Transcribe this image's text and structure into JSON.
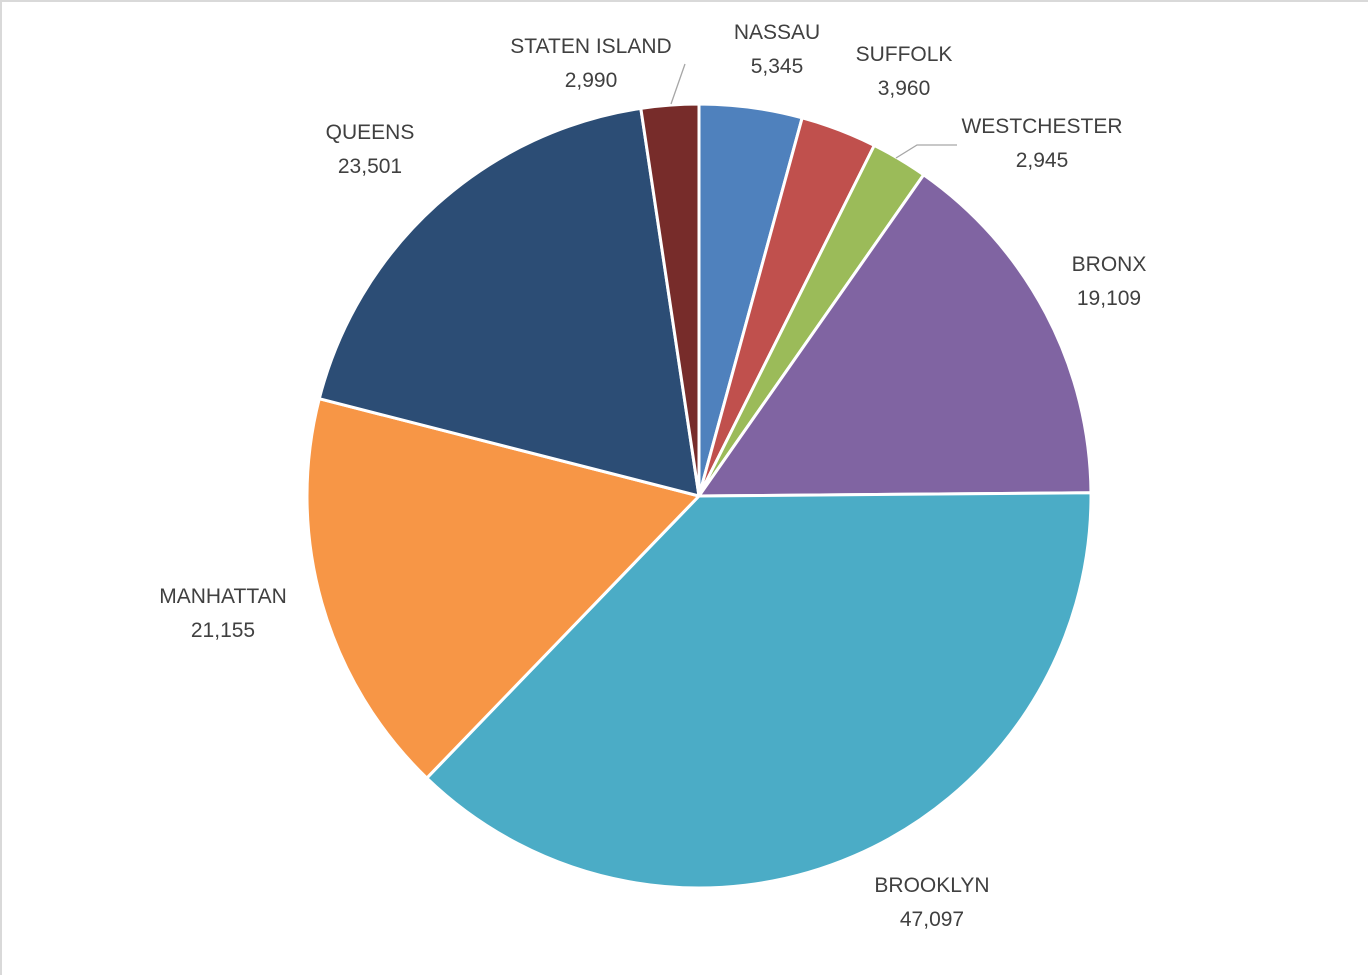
{
  "chart_data": {
    "type": "pie",
    "title": "",
    "start_angle_deg": 0,
    "direction": "clockwise",
    "slices": [
      {
        "label": "NASSAU",
        "value": 5345,
        "value_label": "5,345",
        "color": "#4F81BD"
      },
      {
        "label": "SUFFOLK",
        "value": 3960,
        "value_label": "3,960",
        "color": "#C0504D"
      },
      {
        "label": "WESTCHESTER",
        "value": 2945,
        "value_label": "2,945",
        "color": "#9BBB59"
      },
      {
        "label": "BRONX",
        "value": 19109,
        "value_label": "19,109",
        "color": "#8064A2"
      },
      {
        "label": "BROOKLYN",
        "value": 47097,
        "value_label": "47,097",
        "color": "#4BACC6"
      },
      {
        "label": "MANHATTAN",
        "value": 21155,
        "value_label": "21,155",
        "color": "#F79646"
      },
      {
        "label": "QUEENS",
        "value": 23501,
        "value_label": "23,501",
        "color": "#2C4D75"
      },
      {
        "label": "STATEN ISLAND",
        "value": 2990,
        "value_label": "2,990",
        "color": "#772C2A"
      }
    ],
    "legend": "none",
    "data_labels": "category-and-value"
  }
}
